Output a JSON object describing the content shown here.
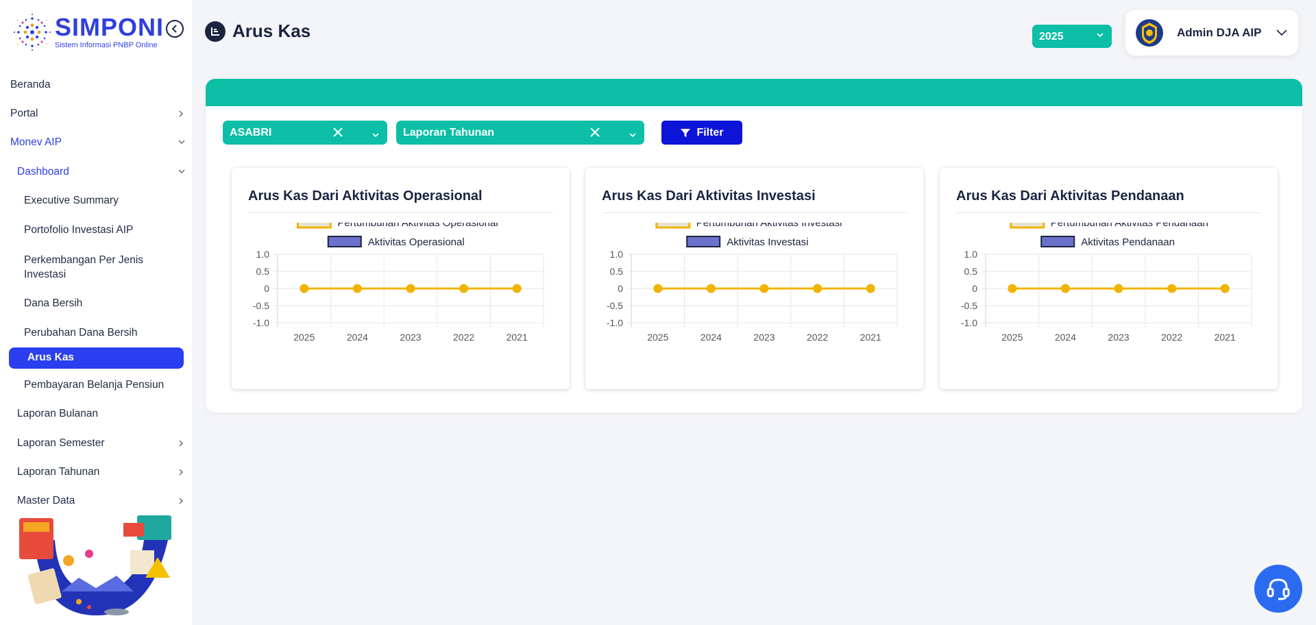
{
  "app": {
    "name": "SIMPONI",
    "tagline": "Sistem Informasi PNBP Online"
  },
  "sidebar": {
    "items": [
      {
        "label": "Beranda"
      },
      {
        "label": "Portal"
      },
      {
        "label": "Monev AIP"
      },
      {
        "label": "Dashboard"
      },
      {
        "label": "Executive Summary"
      },
      {
        "label": "Portofolio Investasi AIP"
      },
      {
        "label": "Perkembangan Per Jenis"
      },
      {
        "label": "Investasi"
      },
      {
        "label": "Dana Bersih"
      },
      {
        "label": "Perubahan Dana Bersih"
      },
      {
        "label": "Arus Kas"
      },
      {
        "label": "Pembayaran Belanja Pensiun"
      },
      {
        "label": "Laporan Bulanan"
      },
      {
        "label": "Laporan Semester"
      },
      {
        "label": "Laporan Tahunan"
      },
      {
        "label": "Master Data"
      }
    ]
  },
  "header": {
    "title": "Arus Kas",
    "year": "2025",
    "user": "Admin DJA AIP"
  },
  "filters": {
    "entity": "ASABRI",
    "report": "Laporan Tahunan",
    "button": "Filter"
  },
  "colors": {
    "accent": "#0cbfa6",
    "primary": "#2b3ef0",
    "filter": "#0d14d8",
    "growth": "#f0b400",
    "activity": "#6b72cc"
  },
  "chart_data": [
    {
      "type": "line",
      "title": "Arus Kas Dari Aktivitas Operasional",
      "x": [
        "2025",
        "2024",
        "2023",
        "2022",
        "2021"
      ],
      "series": [
        {
          "name": "Pertumbuhan Aktivitas Operasional",
          "values": [
            0,
            0,
            0,
            0,
            0
          ]
        },
        {
          "name": "Aktivitas Operasional",
          "values": [
            0,
            0,
            0,
            0,
            0
          ]
        }
      ],
      "yticks": [
        "1.0",
        "0.5",
        "0",
        "-0.5",
        "-1.0"
      ],
      "ylim": [
        -1.0,
        1.0
      ],
      "grid": true,
      "legend": "top"
    },
    {
      "type": "line",
      "title": "Arus Kas Dari Aktivitas Investasi",
      "x": [
        "2025",
        "2024",
        "2023",
        "2022",
        "2021"
      ],
      "series": [
        {
          "name": "Pertumbuhan Aktivitas Investasi",
          "values": [
            0,
            0,
            0,
            0,
            0
          ]
        },
        {
          "name": "Aktivitas Investasi",
          "values": [
            0,
            0,
            0,
            0,
            0
          ]
        }
      ],
      "yticks": [
        "1.0",
        "0.5",
        "0",
        "-0.5",
        "-1.0"
      ],
      "ylim": [
        -1.0,
        1.0
      ],
      "grid": true,
      "legend": "top"
    },
    {
      "type": "line",
      "title": "Arus Kas Dari Aktivitas Pendanaan",
      "x": [
        "2025",
        "2024",
        "2023",
        "2022",
        "2021"
      ],
      "series": [
        {
          "name": "Pertumbuhan Aktivitas Pendanaan",
          "values": [
            0,
            0,
            0,
            0,
            0
          ]
        },
        {
          "name": "Aktivitas Pendanaan",
          "values": [
            0,
            0,
            0,
            0,
            0
          ]
        }
      ],
      "yticks": [
        "1.0",
        "0.5",
        "0",
        "-0.5",
        "-1.0"
      ],
      "ylim": [
        -1.0,
        1.0
      ],
      "grid": true,
      "legend": "top"
    }
  ]
}
